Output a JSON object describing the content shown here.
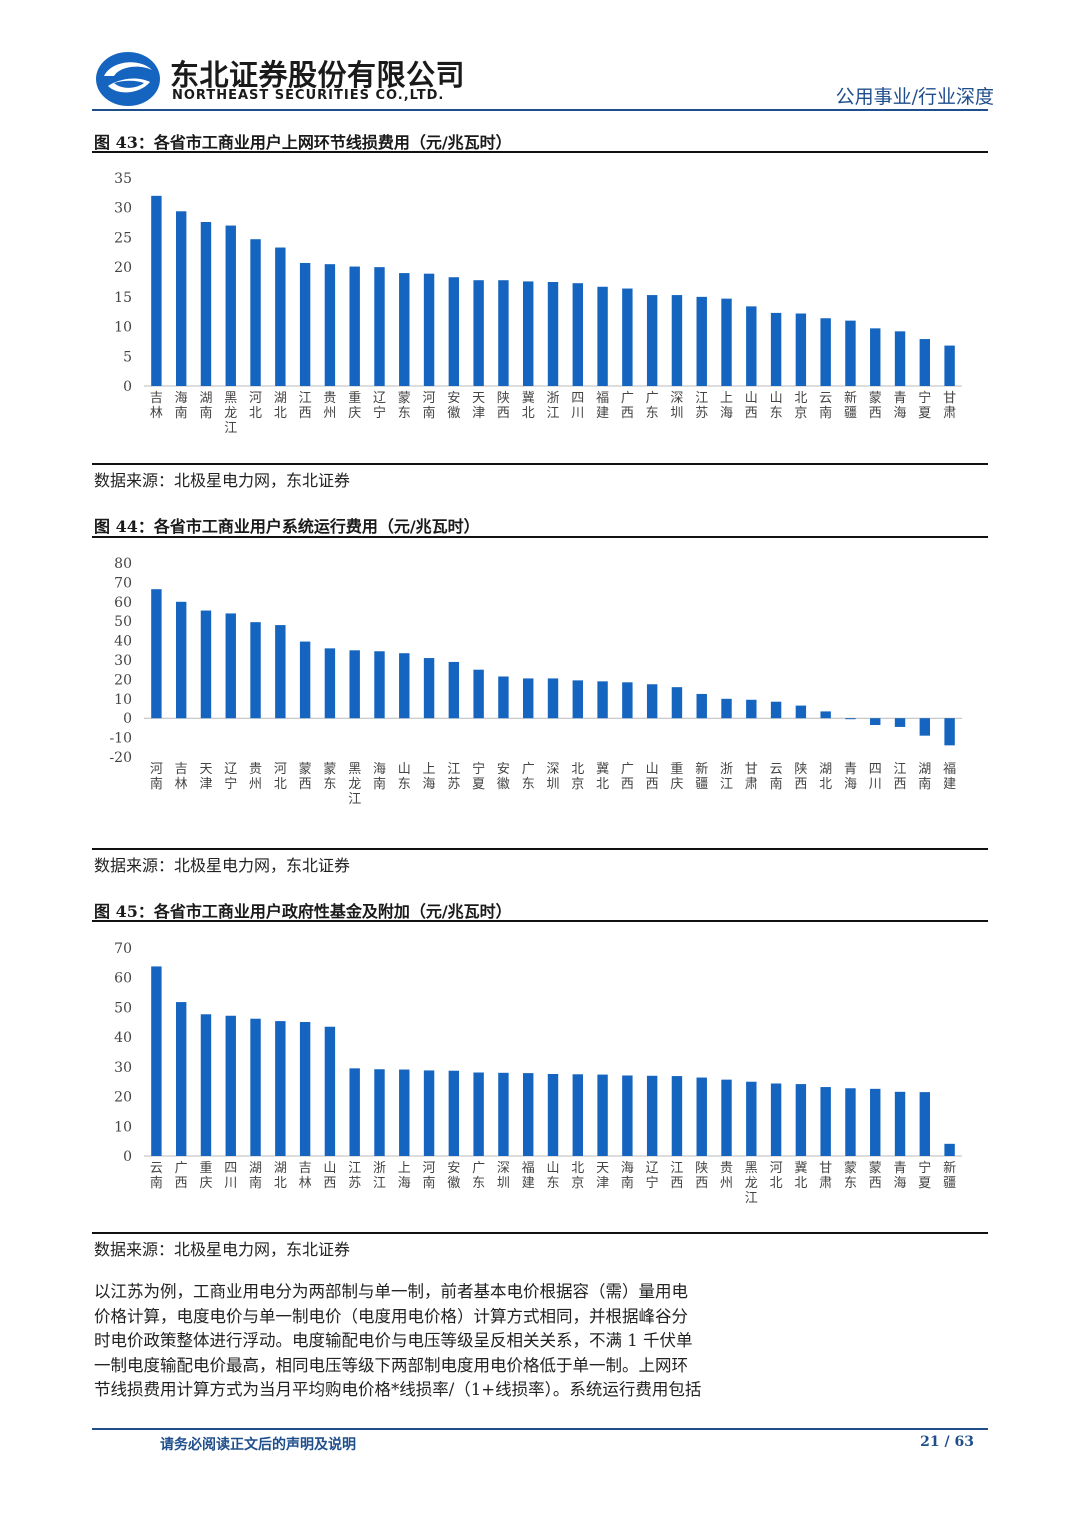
{
  "header": {
    "company_cn": "东北证券股份有限公司",
    "company_en": "NORTHEAST SECURITIES CO.,LTD.",
    "category": "公用事业/行业深度",
    "brand_color": "#1f4e8c"
  },
  "figures": [
    {
      "title": "图 43：各省市工商业用户上网环节线损费用（元/兆瓦时）",
      "source": "数据来源：北极星电力网，东北证券"
    },
    {
      "title": "图 44：各省市工商业用户系统运行费用（元/兆瓦时）",
      "source": "数据来源：北极星电力网，东北证券"
    },
    {
      "title": "图 45：各省市工商业用户政府性基金及附加（元/兆瓦时）",
      "source": "数据来源：北极星电力网，东北证券"
    }
  ],
  "chart_data": [
    {
      "type": "bar",
      "bar_color": "#1565c0",
      "categories": [
        "吉林",
        "海南",
        "湖南",
        "黑龙江",
        "河北",
        "湖北",
        "江西",
        "贵州",
        "重庆",
        "辽宁",
        "蒙东",
        "河南",
        "安徽",
        "天津",
        "陕西",
        "冀北",
        "浙江",
        "四川",
        "福建",
        "广西",
        "广东",
        "深圳",
        "江苏",
        "上海",
        "山西",
        "山东",
        "北京",
        "云南",
        "新疆",
        "蒙西",
        "青海",
        "宁夏",
        "甘肃"
      ],
      "values": [
        32,
        29.4,
        27.6,
        27,
        24.7,
        23.3,
        20.7,
        20.5,
        20.1,
        20,
        19,
        18.9,
        18.3,
        17.8,
        17.8,
        17.6,
        17.5,
        17.3,
        16.7,
        16.4,
        15.3,
        15.3,
        15,
        14.7,
        13.4,
        12.3,
        12.2,
        11.4,
        11,
        9.7,
        9.2,
        7.9,
        6.8
      ],
      "ylim": [
        0,
        35
      ],
      "yticks": [
        0,
        5,
        10,
        15,
        20,
        25,
        30,
        35
      ]
    },
    {
      "type": "bar",
      "bar_color": "#1565c0",
      "categories": [
        "河南",
        "吉林",
        "天津",
        "辽宁",
        "贵州",
        "河北",
        "蒙西",
        "蒙东",
        "黑龙江",
        "海南",
        "山东",
        "上海",
        "江苏",
        "宁夏",
        "安徽",
        "广东",
        "深圳",
        "北京",
        "冀北",
        "广西",
        "山西",
        "重庆",
        "新疆",
        "浙江",
        "甘肃",
        "云南",
        "陕西",
        "湖北",
        "青海",
        "四川",
        "江西",
        "湖南",
        "福建"
      ],
      "values": [
        66.5,
        60,
        55.5,
        54,
        49.5,
        48,
        39.5,
        36,
        35,
        34.5,
        33.5,
        31,
        29,
        25,
        21.5,
        20.5,
        20.5,
        19.5,
        19,
        18.5,
        17.5,
        16,
        12.5,
        10,
        9.5,
        8.5,
        6.5,
        3.5,
        -0.5,
        -3.5,
        -4.5,
        -9,
        -14
      ],
      "ylim": [
        -20,
        80
      ],
      "yticks": [
        -20,
        -10,
        0,
        10,
        20,
        30,
        40,
        50,
        60,
        70,
        80
      ]
    },
    {
      "type": "bar",
      "bar_color": "#1565c0",
      "categories": [
        "云南",
        "广西",
        "重庆",
        "四川",
        "湖南",
        "湖北",
        "吉林",
        "山西",
        "江苏",
        "浙江",
        "上海",
        "河南",
        "安徽",
        "广东",
        "深圳",
        "福建",
        "山东",
        "北京",
        "天津",
        "海南",
        "辽宁",
        "江西",
        "陕西",
        "贵州",
        "黑龙江",
        "河北",
        "冀北",
        "甘肃",
        "蒙东",
        "蒙西",
        "青海",
        "宁夏",
        "新疆"
      ],
      "values": [
        63.8,
        51.8,
        47.7,
        47.2,
        46.2,
        45.4,
        45.1,
        43.5,
        29.5,
        29.2,
        29.1,
        28.8,
        28.7,
        28.1,
        28,
        27.9,
        27.6,
        27.5,
        27.4,
        27.1,
        27,
        26.9,
        26.4,
        25.7,
        25,
        24.4,
        24.2,
        23.2,
        22.8,
        22.6,
        21.6,
        21.5,
        4.1
      ],
      "ylim": [
        0,
        70
      ],
      "yticks": [
        0,
        10,
        20,
        30,
        40,
        50,
        60,
        70
      ]
    }
  ],
  "body": {
    "paragraph_lines": [
      "以江苏为例，工商业用电分为两部制与单一制，前者基本电价根据容（需）量用电",
      "价格计算，电度电价与单一制电价（电度用电价格）计算方式相同，并根据峰谷分",
      "时电价政策整体进行浮动。电度输配电价与电压等级呈反相关关系，不满 1 千伏单",
      "一制电度输配电价最高，相同电压等级下两部制电度用电价格低于单一制。上网环",
      "节线损费用计算方式为当月平均购电价格*线损率/（1+线损率）。系统运行费用包括"
    ]
  },
  "footer": {
    "disclaimer": "请务必阅读正文后的声明及说明",
    "page": "21  /  63"
  }
}
